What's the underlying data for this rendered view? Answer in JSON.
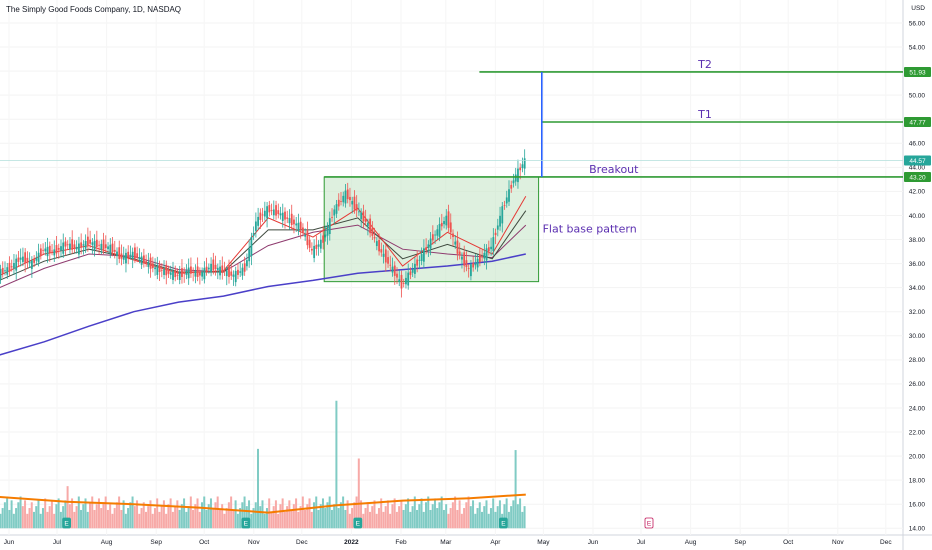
{
  "header": {
    "title": "The Simply Good Foods Company, 1D, NASDAQ"
  },
  "price_axis": {
    "currency": "USD"
  },
  "colors": {
    "up": "#26a69a",
    "down": "#ef5350",
    "vol_up": "#80cbc4",
    "vol_down": "#f7a9a7",
    "ma200": "#4a3fc8",
    "ma_red": "#e53935",
    "ma_dark": "#3f4a3f",
    "ma_purple": "#8e3a6e",
    "target": "#2e9a33",
    "box_fill": "#c8e6c9",
    "box_stroke": "#2e9a33",
    "measure": "#2962ff",
    "vol_ma": "#f57c00",
    "annotation": "#5b2fb0",
    "earnings": "#26a69a",
    "earnings_future": "#c2185b"
  },
  "chart_data": {
    "type": "candlestick",
    "title": "The Simply Good Foods Company, 1D, NASDAQ",
    "y_axis": {
      "ylim": [
        14.0,
        56.0
      ],
      "ticks": [
        "56.00",
        "54.00",
        "52.00",
        "50.00",
        "48.00",
        "46.00",
        "44.00",
        "42.00",
        "40.00",
        "38.00",
        "36.00",
        "34.00",
        "32.00",
        "30.00",
        "28.00",
        "26.00",
        "24.00",
        "22.00",
        "20.00",
        "18.00",
        "16.00",
        "14.00"
      ]
    },
    "x_axis": {
      "ticks": [
        "Jun",
        "Jul",
        "Aug",
        "Sep",
        "Oct",
        "Nov",
        "Dec",
        "2022",
        "Feb",
        "Mar",
        "Apr",
        "May",
        "Jun",
        "Jul",
        "Aug",
        "Sep",
        "Oct",
        "Nov",
        "Dec"
      ]
    },
    "price_labels": [
      {
        "value": 51.93,
        "text": "51.93",
        "color": "#2e9a33"
      },
      {
        "value": 47.77,
        "text": "47.77",
        "color": "#2e9a33"
      },
      {
        "value": 44.57,
        "text": "44.57",
        "color": "#26a69a"
      },
      {
        "value": 43.2,
        "text": "43.20",
        "color": "#2e9a33"
      }
    ],
    "current_price": 44.57,
    "targets": [
      {
        "label": "T2",
        "price": 51.93
      },
      {
        "label": "T1",
        "price": 47.77
      },
      {
        "label": "Breakout",
        "price": 43.2
      }
    ],
    "base_box": {
      "top": 43.2,
      "bottom": 34.5,
      "start": "2021-12-15",
      "end": "2022-04-28",
      "label": "Flat base pattern"
    },
    "measured_move": {
      "from": 43.2,
      "to": 51.93,
      "date": "2022-04-30"
    },
    "close_series": [
      [
        "2021-05-26",
        35.2
      ],
      [
        "2021-06-02",
        35.6
      ],
      [
        "2021-06-09",
        36.5
      ],
      [
        "2021-06-16",
        36.0
      ],
      [
        "2021-06-23",
        37.2
      ],
      [
        "2021-06-30",
        37.0
      ],
      [
        "2021-07-07",
        37.6
      ],
      [
        "2021-07-14",
        37.3
      ],
      [
        "2021-07-21",
        37.8
      ],
      [
        "2021-07-28",
        37.5
      ],
      [
        "2021-08-04",
        37.3
      ],
      [
        "2021-08-11",
        36.5
      ],
      [
        "2021-08-18",
        36.8
      ],
      [
        "2021-08-25",
        36.2
      ],
      [
        "2021-09-01",
        35.6
      ],
      [
        "2021-09-08",
        35.3
      ],
      [
        "2021-09-15",
        35.0
      ],
      [
        "2021-09-22",
        35.4
      ],
      [
        "2021-09-29",
        35.1
      ],
      [
        "2021-10-06",
        35.8
      ],
      [
        "2021-10-13",
        35.4
      ],
      [
        "2021-10-20",
        35.0
      ],
      [
        "2021-10-27",
        35.6
      ],
      [
        "2021-11-03",
        39.5
      ],
      [
        "2021-11-10",
        40.5
      ],
      [
        "2021-11-17",
        40.2
      ],
      [
        "2021-11-24",
        39.6
      ],
      [
        "2021-12-01",
        39.0
      ],
      [
        "2021-12-08",
        37.0
      ],
      [
        "2021-12-15",
        38.0
      ],
      [
        "2021-12-22",
        40.5
      ],
      [
        "2021-12-29",
        41.8
      ],
      [
        "2022-01-05",
        40.5
      ],
      [
        "2022-01-12",
        39.2
      ],
      [
        "2022-01-19",
        37.2
      ],
      [
        "2022-01-26",
        35.8
      ],
      [
        "2022-02-02",
        34.2
      ],
      [
        "2022-02-09",
        35.5
      ],
      [
        "2022-02-16",
        37.0
      ],
      [
        "2022-02-23",
        38.5
      ],
      [
        "2022-03-02",
        39.8
      ],
      [
        "2022-03-09",
        37.0
      ],
      [
        "2022-03-16",
        35.5
      ],
      [
        "2022-03-23",
        36.4
      ],
      [
        "2022-03-30",
        37.4
      ],
      [
        "2022-04-06",
        40.5
      ],
      [
        "2022-04-13",
        43.0
      ],
      [
        "2022-04-20",
        44.57
      ]
    ],
    "ma_series": [
      {
        "name": "",
        "color_key": "ma200",
        "points": [
          [
            "2021-05-26",
            28.4
          ],
          [
            "2021-06-23",
            29.5
          ],
          [
            "2021-07-21",
            30.8
          ],
          [
            "2021-08-18",
            32.0
          ],
          [
            "2021-09-15",
            32.8
          ],
          [
            "2021-10-13",
            33.3
          ],
          [
            "2021-11-10",
            34.1
          ],
          [
            "2021-12-08",
            34.6
          ],
          [
            "2022-01-05",
            35.2
          ],
          [
            "2022-02-02",
            35.5
          ],
          [
            "2022-03-02",
            35.8
          ],
          [
            "2022-03-30",
            36.2
          ],
          [
            "2022-04-20",
            36.8
          ]
        ]
      },
      {
        "name": "",
        "color_key": "ma_purple",
        "points": [
          [
            "2021-05-26",
            34.0
          ],
          [
            "2021-06-23",
            35.6
          ],
          [
            "2021-07-21",
            36.8
          ],
          [
            "2021-08-18",
            36.6
          ],
          [
            "2021-09-15",
            35.5
          ],
          [
            "2021-10-13",
            35.3
          ],
          [
            "2021-11-10",
            37.5
          ],
          [
            "2021-12-08",
            38.6
          ],
          [
            "2022-01-05",
            39.2
          ],
          [
            "2022-02-02",
            37.2
          ],
          [
            "2022-03-02",
            36.8
          ],
          [
            "2022-03-30",
            36.5
          ],
          [
            "2022-04-20",
            39.2
          ]
        ]
      },
      {
        "name": "",
        "color_key": "ma_dark",
        "points": [
          [
            "2021-05-26",
            34.6
          ],
          [
            "2021-06-23",
            36.2
          ],
          [
            "2021-07-21",
            37.2
          ],
          [
            "2021-08-18",
            36.4
          ],
          [
            "2021-09-15",
            35.3
          ],
          [
            "2021-10-13",
            35.3
          ],
          [
            "2021-11-10",
            38.8
          ],
          [
            "2021-12-08",
            38.8
          ],
          [
            "2022-01-05",
            39.8
          ],
          [
            "2022-02-02",
            36.4
          ],
          [
            "2022-03-02",
            37.6
          ],
          [
            "2022-03-30",
            36.4
          ],
          [
            "2022-04-20",
            40.4
          ]
        ]
      },
      {
        "name": "",
        "color_key": "ma_red",
        "points": [
          [
            "2021-05-26",
            35.0
          ],
          [
            "2021-06-23",
            36.8
          ],
          [
            "2021-07-21",
            37.5
          ],
          [
            "2021-08-18",
            36.3
          ],
          [
            "2021-09-15",
            35.2
          ],
          [
            "2021-10-13",
            35.4
          ],
          [
            "2021-11-10",
            39.8
          ],
          [
            "2021-12-08",
            38.2
          ],
          [
            "2022-01-05",
            40.6
          ],
          [
            "2022-02-02",
            35.8
          ],
          [
            "2022-03-02",
            38.6
          ],
          [
            "2022-03-30",
            36.8
          ],
          [
            "2022-04-20",
            41.6
          ]
        ]
      }
    ],
    "volume": {
      "scale_max": 25.0,
      "baseline": 14.0,
      "moving_average": [
        [
          "2021-05-26",
          16.6
        ],
        [
          "2021-07-07",
          16.2
        ],
        [
          "2021-08-18",
          16.0
        ],
        [
          "2021-09-29",
          15.7
        ],
        [
          "2021-11-10",
          15.3
        ],
        [
          "2021-12-22",
          15.9
        ],
        [
          "2022-02-02",
          16.3
        ],
        [
          "2022-03-16",
          16.5
        ],
        [
          "2022-04-20",
          16.8
        ]
      ],
      "spikes": [
        [
          "2021-07-07",
          17.5
        ],
        [
          "2021-11-03",
          20.6
        ],
        [
          "2021-12-22",
          24.6
        ],
        [
          "2022-01-05",
          19.8
        ],
        [
          "2022-04-13",
          20.5
        ],
        [
          "2022-04-20",
          20.4
        ]
      ]
    },
    "earnings_markers": [
      {
        "date": "2021-07-07",
        "text": "E"
      },
      {
        "date": "2021-10-27",
        "text": "E"
      },
      {
        "date": "2022-01-05",
        "text": "E"
      },
      {
        "date": "2022-04-06",
        "text": "E"
      },
      {
        "date": "2022-07-06",
        "text": "E",
        "future": true
      }
    ]
  }
}
